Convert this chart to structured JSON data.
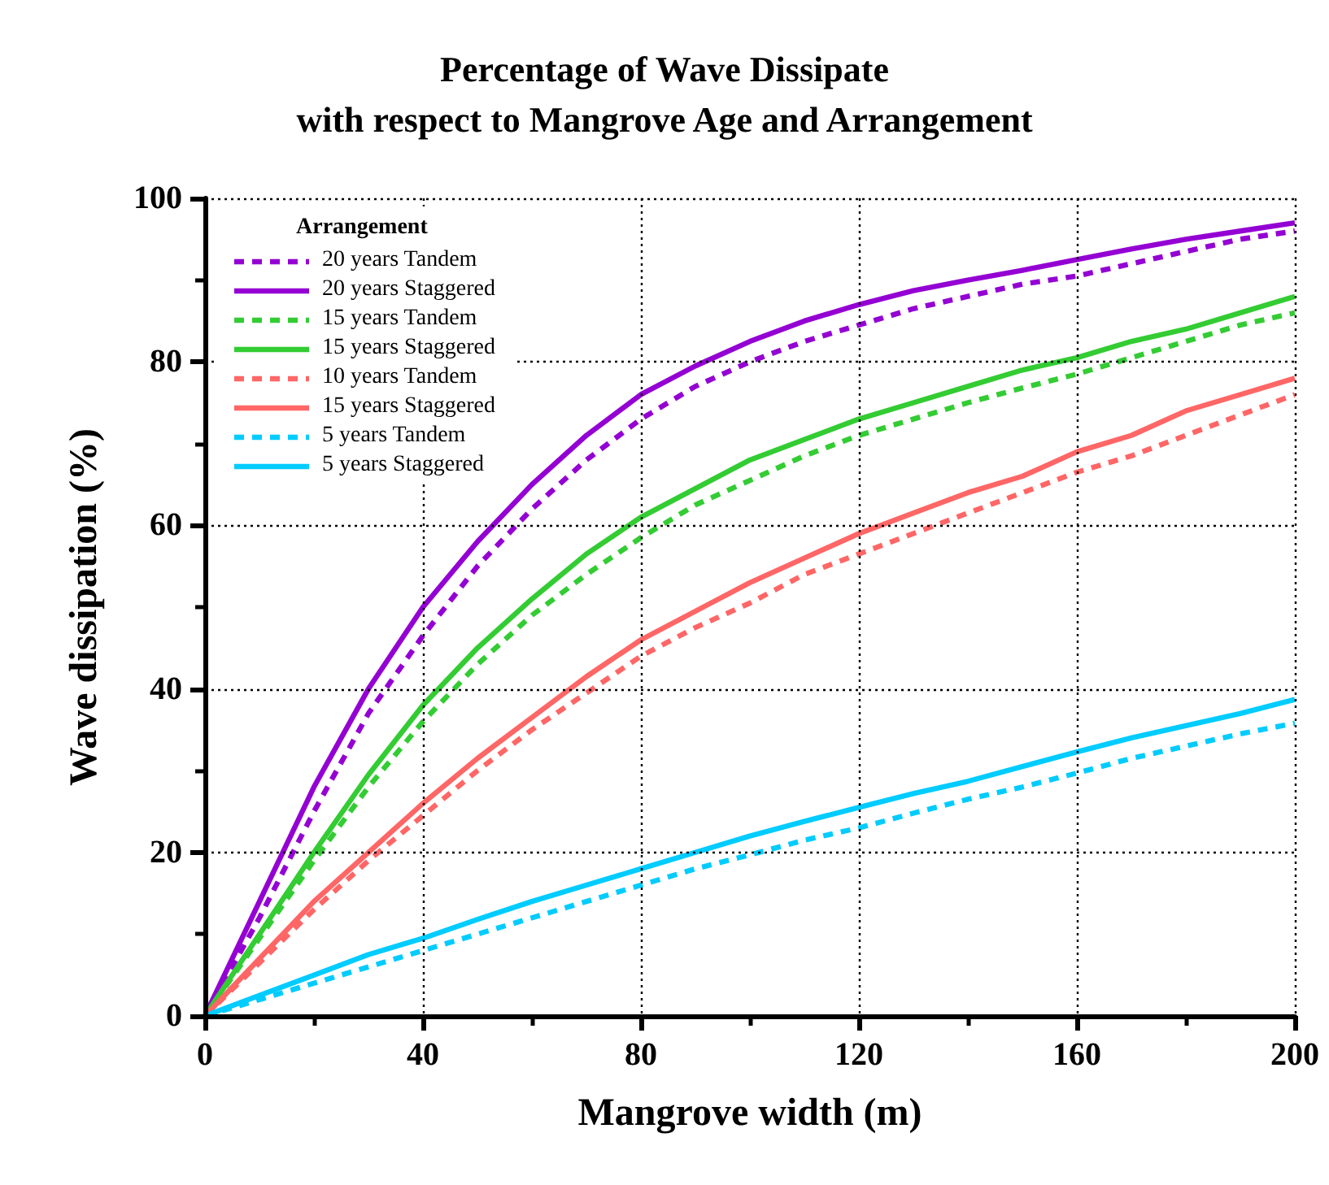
{
  "chart_data": {
    "type": "line",
    "title": "Percentage of Wave Dissipate\nwith respect to Mangrove Age and Arrangement",
    "xlabel": "Mangrove width (m)",
    "ylabel": "Wave dissipation (%)",
    "legend_title": "Arrangement",
    "legend": "top left",
    "grid": true,
    "marker": "none",
    "x": [
      0,
      10,
      20,
      30,
      40,
      50,
      60,
      70,
      80,
      90,
      100,
      110,
      120,
      130,
      140,
      150,
      160,
      170,
      180,
      190,
      200
    ],
    "xlim": [
      0,
      200
    ],
    "xticks": [
      0,
      {
        "value": 20,
        "label": null
      },
      40,
      {
        "value": 60,
        "label": null
      },
      80,
      {
        "value": 100,
        "label": null
      },
      120,
      {
        "value": 140,
        "label": null
      },
      160,
      {
        "value": 180,
        "label": null
      },
      200
    ],
    "ylim": [
      0,
      100
    ],
    "yticks": [
      0,
      {
        "value": 10,
        "label": null
      },
      20,
      {
        "value": 30,
        "label": null
      },
      40,
      {
        "value": 50,
        "label": null
      },
      60,
      {
        "value": 70,
        "label": null
      },
      80,
      {
        "value": 90,
        "label": null
      },
      100
    ],
    "series": [
      {
        "name": "20 years Tandem",
        "color": "#9400d3",
        "line_style": "dashed",
        "values": [
          0,
          12,
          25,
          37,
          46.5,
          55,
          62,
          68,
          73,
          77,
          80,
          82.5,
          84.5,
          86.5,
          88,
          89.5,
          90.5,
          92,
          93.5,
          95,
          96
        ]
      },
      {
        "name": "20 years Staggered",
        "color": "#9400d3",
        "line_style": "solid",
        "values": [
          0,
          14,
          28,
          40,
          50,
          58,
          65,
          71,
          76,
          79.5,
          82.5,
          85,
          87,
          88.7,
          90,
          91.2,
          92.5,
          93.8,
          95,
          96,
          97
        ]
      },
      {
        "name": "15 years Tandem",
        "color": "#33cc33",
        "line_style": "dashed",
        "values": [
          0,
          9.5,
          19,
          28,
          36,
          43,
          49,
          54,
          58.5,
          62.5,
          65.5,
          68.5,
          71,
          73,
          75,
          76.8,
          78.5,
          80.5,
          82.5,
          84.5,
          86
        ]
      },
      {
        "name": "15 years Staggered",
        "color": "#33cc33",
        "line_style": "solid",
        "values": [
          0,
          10,
          20,
          29.5,
          38,
          45,
          51,
          56.5,
          61,
          64.5,
          68,
          70.5,
          73,
          75,
          77,
          79,
          80.5,
          82.5,
          84,
          86,
          88
        ]
      },
      {
        "name": "10 years Tandem",
        "color": "#ff6666",
        "line_style": "dashed",
        "values": [
          0,
          6.5,
          13,
          19,
          24.5,
          30,
          35,
          39.5,
          44,
          47.5,
          50.5,
          54,
          56.5,
          59,
          61.5,
          64,
          66.5,
          68.5,
          71,
          73.5,
          76
        ]
      },
      {
        "name": "15 years Staggered",
        "color": "#ff6666",
        "line_style": "solid",
        "values": [
          0,
          7,
          14,
          20,
          26,
          31.5,
          36.5,
          41.5,
          46,
          49.5,
          53,
          56,
          59,
          61.5,
          64,
          66,
          69,
          71,
          74,
          76,
          78
        ]
      },
      {
        "name": "5 years Tandem",
        "color": "#00ccff",
        "line_style": "dashed",
        "values": [
          0,
          2,
          4,
          6,
          8,
          10,
          12,
          14,
          16,
          18,
          19.7,
          21.5,
          23,
          24.8,
          26.5,
          28,
          29.7,
          31.5,
          33,
          34.5,
          35.8
        ]
      },
      {
        "name": "5 years Staggered",
        "color": "#00ccff",
        "line_style": "solid",
        "values": [
          0,
          2.5,
          5,
          7.5,
          9.5,
          11.8,
          14,
          16,
          18,
          20,
          22,
          23.8,
          25.5,
          27.2,
          28.7,
          30.5,
          32.3,
          34,
          35.5,
          37,
          38.7
        ]
      }
    ]
  }
}
